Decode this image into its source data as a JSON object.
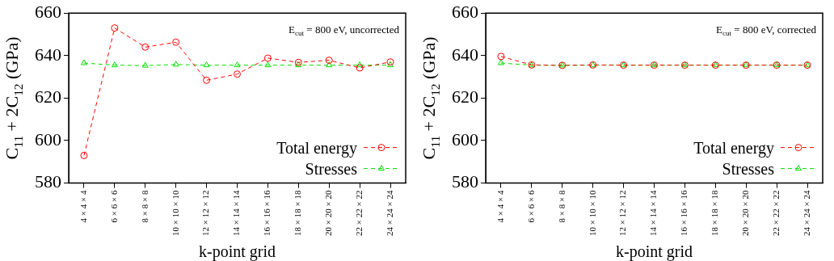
{
  "chart_data": [
    {
      "type": "line",
      "xlabel": "k-point grid",
      "ylabel": "C$_{11}$ + 2C$_{12}$ (GPa)",
      "annotations": [
        "E$_{cut}$ = 800 eV, uncorrected"
      ],
      "categories": [
        "4 × 4 × 4",
        "6 × 6 × 6",
        "8 × 8 × 8",
        "10 × 10 × 10",
        "12 × 12 × 12",
        "14 × 14 × 14",
        "16 × 16 × 16",
        "18 × 18 × 18",
        "20 × 20 × 20",
        "22 × 22 × 22",
        "24 × 24 × 24"
      ],
      "series": [
        {
          "name": "Total energy",
          "color": "#ff0000",
          "marker": "circle",
          "values": [
            593,
            653,
            644,
            646.3,
            628.4,
            631.3,
            638.8,
            636.8,
            637.8,
            634.2,
            637
          ]
        },
        {
          "name": "Stresses",
          "color": "#00e000",
          "marker": "triangle",
          "values": [
            636.5,
            635.5,
            635.3,
            635.8,
            635.5,
            635.5,
            635.5,
            635.5,
            635.5,
            635.5,
            635.5
          ]
        }
      ],
      "ylim": [
        580,
        660
      ],
      "yticks": [
        580,
        600,
        620,
        640,
        660
      ],
      "grid": false,
      "legend": "bottom right",
      "line_style": "dashed"
    },
    {
      "type": "line",
      "xlabel": "k-point grid",
      "ylabel": "C$_{11}$ + 2C$_{12}$ (GPa)",
      "annotations": [
        "E$_{cut}$ = 800 eV, corrected"
      ],
      "categories": [
        "4 × 4 × 4",
        "6 × 6 × 6",
        "8 × 8 × 8",
        "10 × 10 × 10",
        "12 × 12 × 12",
        "14 × 14 × 14",
        "16 × 16 × 16",
        "18 × 18 × 18",
        "20 × 20 × 20",
        "22 × 22 × 22",
        "24 × 24 × 24"
      ],
      "series": [
        {
          "name": "Total energy",
          "color": "#ff0000",
          "marker": "circle",
          "values": [
            639.6,
            635.6,
            635.4,
            635.6,
            635.5,
            635.5,
            635.5,
            635.5,
            635.5,
            635.5,
            635.5
          ]
        },
        {
          "name": "Stresses",
          "color": "#00e000",
          "marker": "triangle",
          "values": [
            636.5,
            635.5,
            635.4,
            635.5,
            635.5,
            635.5,
            635.5,
            635.5,
            635.5,
            635.5,
            635.5
          ]
        }
      ],
      "ylim": [
        580,
        660
      ],
      "yticks": [
        580,
        600,
        620,
        640,
        660
      ],
      "grid": false,
      "legend": "bottom right",
      "line_style": "dashed"
    }
  ]
}
